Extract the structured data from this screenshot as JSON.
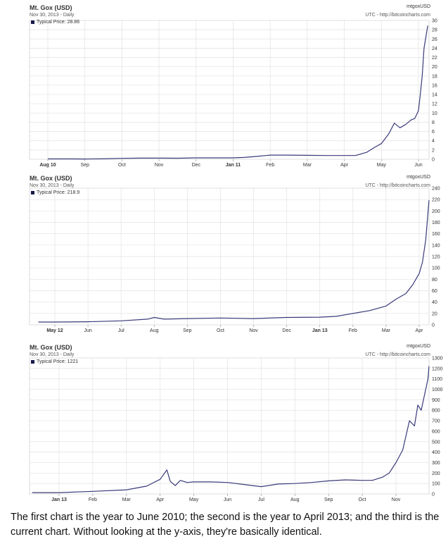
{
  "charts": [
    {
      "title": "Mt. Gox (USD)",
      "date": "Nov 30, 2013 - Daily",
      "legend": "Typical Price: 28.86",
      "source": "mtgoxUSD",
      "utc": "UTC - http://bitcoincharts.com"
    },
    {
      "title": "Mt. Gox (USD)",
      "date": "Nov 30, 2013 - Daily",
      "legend": "Typical Price: 218.9",
      "source": "mtgoxUSD",
      "utc": "UTC - http://bitcoincharts.com"
    },
    {
      "title": "Mt. Gox (USD)",
      "date": "Nov 30, 2013 - Daily",
      "legend": "Typical Price: 1221",
      "source": "mtgoxUSD",
      "utc": "UTC - http://bitcoincharts.com"
    }
  ],
  "caption": "The first chart is the year to June 2010; the second is the year to April 2013; and the third is the current chart. Without looking at the y-axis, they're basically identical.",
  "colors": {
    "line": "#3a3a7a",
    "grid": "#e2e2e2",
    "legend_swatch": "#1a1a4a"
  },
  "chart_data": [
    {
      "type": "line",
      "title": "Mt. Gox (USD)",
      "x_ticks": [
        "Aug 10",
        "Sep",
        "Oct",
        "Nov",
        "Dec",
        "Jan 11",
        "Feb",
        "Mar",
        "Apr",
        "May",
        "Jun"
      ],
      "y_ticks": [
        0,
        2,
        4,
        6,
        8,
        10,
        12,
        14,
        16,
        18,
        20,
        22,
        24,
        26,
        28,
        30
      ],
      "ylim": [
        0,
        30
      ],
      "grid": true,
      "legend_position": "top-left",
      "series": [
        {
          "name": "Typical Price",
          "x": [
            0,
            0.6,
            1,
            1.5,
            2,
            2.5,
            3,
            3.5,
            4,
            4.5,
            5,
            5.3,
            5.6,
            6,
            6.5,
            7,
            7.5,
            8,
            8.3,
            8.6,
            8.8,
            9,
            9.2,
            9.35,
            9.5,
            9.65,
            9.8,
            9.9,
            10.0,
            10.05,
            10.1,
            10.15,
            10.25
          ],
          "values": [
            0.07,
            0.07,
            0.06,
            0.09,
            0.2,
            0.25,
            0.25,
            0.23,
            0.3,
            0.3,
            0.3,
            0.4,
            0.6,
            0.9,
            0.9,
            0.85,
            0.8,
            0.8,
            0.8,
            1.5,
            2.5,
            3.4,
            5.5,
            7.8,
            6.8,
            7.5,
            8.5,
            8.8,
            10.5,
            14.0,
            18.0,
            24.0,
            28.86
          ]
        }
      ]
    },
    {
      "type": "line",
      "title": "Mt. Gox (USD)",
      "x_ticks": [
        "May 12",
        "Jun",
        "Jul",
        "Aug",
        "Sep",
        "Oct",
        "Nov",
        "Dec",
        "Jan 13",
        "Feb",
        "Mar",
        "Apr"
      ],
      "y_ticks": [
        0,
        20,
        40,
        60,
        80,
        100,
        120,
        140,
        160,
        180,
        200,
        220,
        240
      ],
      "ylim": [
        0,
        240
      ],
      "grid": true,
      "legend_position": "top-left",
      "series": [
        {
          "name": "Typical Price",
          "x": [
            -0.5,
            0,
            1,
            2,
            2.8,
            3,
            3.3,
            4,
            5,
            6,
            7,
            8,
            8.5,
            9,
            9.5,
            10,
            10.3,
            10.6,
            10.8,
            11,
            11.1,
            11.2,
            11.3
          ],
          "values": [
            5,
            5,
            5.5,
            7,
            10,
            13,
            10,
            11,
            12,
            11,
            13,
            13.5,
            15,
            20,
            25,
            33,
            45,
            55,
            70,
            90,
            110,
            150,
            218.9
          ]
        }
      ]
    },
    {
      "type": "line",
      "title": "Mt. Gox (USD)",
      "x_ticks": [
        "Jan 13",
        "Feb",
        "Mar",
        "Apr",
        "May",
        "Jun",
        "Jul",
        "Aug",
        "Sep",
        "Oct",
        "Nov"
      ],
      "y_ticks": [
        0,
        100,
        200,
        300,
        400,
        500,
        600,
        700,
        800,
        900,
        1000,
        1100,
        1200,
        1300
      ],
      "ylim": [
        0,
        1300
      ],
      "grid": true,
      "legend_position": "top-left",
      "series": [
        {
          "name": "Typical Price",
          "x": [
            -0.8,
            0,
            1,
            2,
            2.6,
            3,
            3.2,
            3.3,
            3.45,
            3.6,
            3.8,
            4,
            4.5,
            5,
            5.5,
            6,
            6.5,
            7,
            7.5,
            8,
            8.5,
            9,
            9.3,
            9.6,
            9.8,
            10,
            10.2,
            10.4,
            10.55,
            10.65,
            10.75,
            10.85,
            10.95,
            11.05
          ],
          "values": [
            13,
            13,
            25,
            40,
            75,
            140,
            230,
            120,
            80,
            130,
            110,
            115,
            115,
            110,
            90,
            70,
            95,
            100,
            110,
            125,
            135,
            130,
            130,
            160,
            200,
            300,
            420,
            700,
            650,
            850,
            800,
            950,
            1100,
            1221
          ]
        }
      ]
    }
  ]
}
